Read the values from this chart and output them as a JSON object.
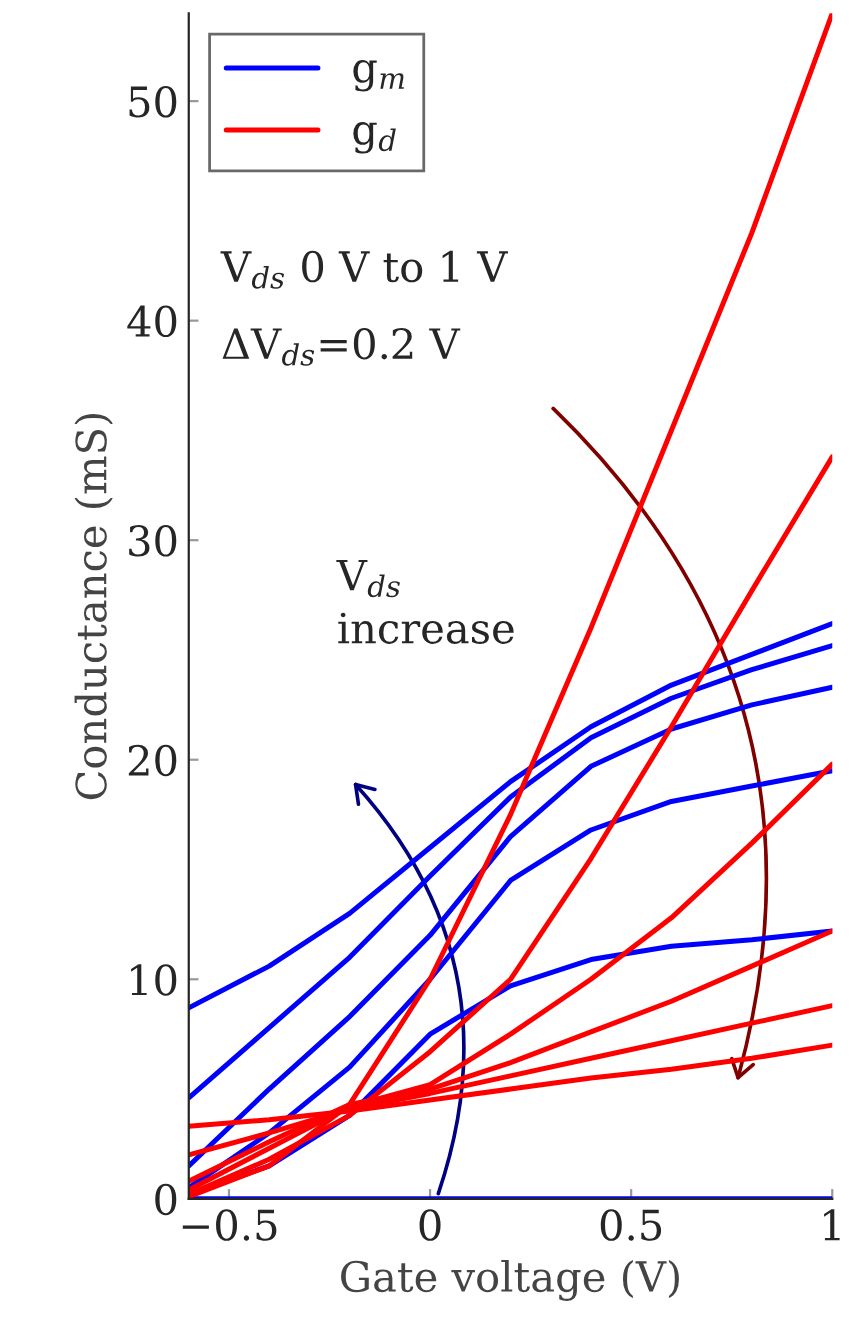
{
  "chart_data": {
    "type": "line",
    "xlabel": "Gate voltage (V)",
    "ylabel": "Conductance (mS)",
    "x": [
      -0.6,
      -0.4,
      -0.2,
      0,
      0.2,
      0.4,
      0.6,
      0.8,
      1.0
    ],
    "series": [
      {
        "name": "g$_{m}$",
        "color": "#0000ff",
        "values": [
          8.7,
          10.6,
          13.0,
          16.0,
          19.0,
          21.5,
          23.4,
          24.8,
          26.2
        ]
      },
      {
        "color": "#0000ff",
        "values": [
          4.6,
          7.8,
          11.0,
          14.7,
          18.3,
          21.0,
          22.8,
          24.1,
          25.2
        ]
      },
      {
        "color": "#0000ff",
        "values": [
          1.5,
          5.0,
          8.3,
          12.0,
          16.5,
          19.7,
          21.4,
          22.5,
          23.3
        ]
      },
      {
        "color": "#0000ff",
        "values": [
          0.5,
          3.0,
          6.0,
          10.0,
          14.5,
          16.8,
          18.1,
          18.8,
          19.5
        ]
      },
      {
        "color": "#0000ff",
        "values": [
          0.2,
          1.5,
          3.8,
          7.5,
          9.7,
          10.9,
          11.5,
          11.8,
          12.2
        ]
      },
      {
        "color": "#0000ff",
        "values": [
          0,
          0,
          0,
          0,
          0,
          0,
          0,
          0,
          0
        ]
      },
      {
        "name": "g$_{d}$",
        "color": "#ff0000",
        "values": [
          0.1,
          1.5,
          4.3,
          10.0,
          17.5,
          26.0,
          35.0,
          44.0,
          54.0
        ]
      },
      {
        "color": "#ff0000",
        "values": [
          0.2,
          1.8,
          3.8,
          6.7,
          10.0,
          15.5,
          21.5,
          27.7,
          33.8
        ]
      },
      {
        "color": "#ff0000",
        "values": [
          0.4,
          2.3,
          4.2,
          5.2,
          7.5,
          10.0,
          12.8,
          16.2,
          19.8
        ]
      },
      {
        "color": "#ff0000",
        "values": [
          0.8,
          2.6,
          4.3,
          5.0,
          6.2,
          7.6,
          9.0,
          10.6,
          12.2
        ]
      },
      {
        "color": "#ff0000",
        "values": [
          2.0,
          3.0,
          4.1,
          4.8,
          5.6,
          6.4,
          7.2,
          8.0,
          8.8
        ]
      },
      {
        "color": "#ff0000",
        "values": [
          3.3,
          3.6,
          4.0,
          4.5,
          5.0,
          5.5,
          5.9,
          6.4,
          7.0
        ]
      }
    ],
    "xlim": [
      -0.6,
      1
    ],
    "xticks": [
      {
        "value": -0.5,
        "label": "−0.5"
      },
      0,
      0.5,
      1
    ],
    "ylim": [
      0,
      54
    ],
    "yticks": [
      0,
      10,
      20,
      30,
      40,
      50
    ],
    "annotations": [
      "V$_{ds}$ 0 V to 1 V",
      "ΔV$_{ds}$=0.2 V",
      "V$_{ds}$\nincrease"
    ],
    "legend": "top left",
    "grid": false,
    "marker": "none",
    "line_style": "solid"
  }
}
